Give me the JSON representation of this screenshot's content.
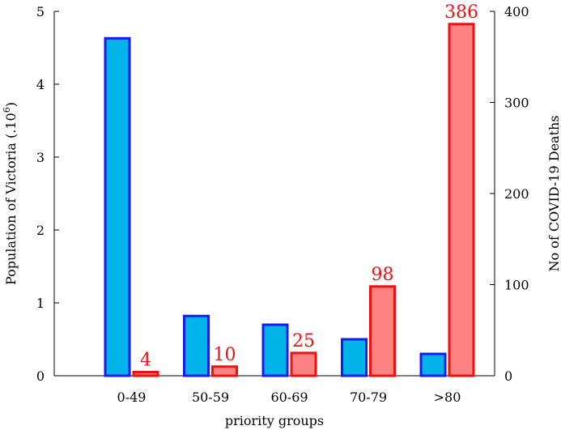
{
  "chart_data": {
    "type": "bar",
    "categories": [
      "0-49",
      "50-59",
      "60-69",
      "70-79",
      ">80"
    ],
    "xlabel": "priority groups",
    "left_axis": {
      "label_prefix": "Population of Victoria (.10",
      "label_exp": "6",
      "label_suffix": ")",
      "ylim": [
        0,
        5
      ],
      "ticks": [
        0,
        1,
        2,
        3,
        4,
        5
      ]
    },
    "right_axis": {
      "label": "No of COVID-19 Deaths",
      "ylim": [
        0,
        400
      ],
      "ticks": [
        0,
        100,
        200,
        300,
        400
      ]
    },
    "series": [
      {
        "axis": "left",
        "values": [
          4.63,
          0.82,
          0.7,
          0.5,
          0.3
        ],
        "fill": "#00b4ea",
        "stroke": "#1a1aee"
      },
      {
        "axis": "right",
        "values": [
          4,
          10,
          25,
          98,
          386
        ],
        "data_labels": [
          "4",
          "10",
          "25",
          "98",
          "386"
        ],
        "fill": "#ff8282",
        "stroke": "#ee1111",
        "label_color": "#ee1111"
      }
    ],
    "grid": false
  }
}
